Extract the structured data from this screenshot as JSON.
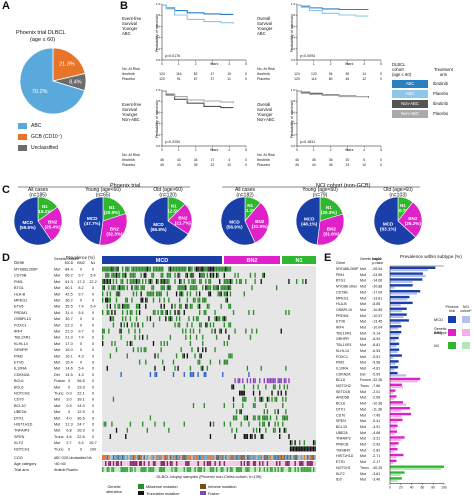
{
  "panels": {
    "A": {
      "letter": "A",
      "title_line1": "Phoenix trial DLBCL",
      "title_line2": "(age ≤ 60)",
      "slices": [
        {
          "label": "ABC",
          "value": 70.2,
          "text": "70.2%",
          "color": "#5aa9dc"
        },
        {
          "label": "GCB (CD10⁻)",
          "value": 21.3,
          "text": "21.3%",
          "color": "#e8742a"
        },
        {
          "label": "Unclassified",
          "value": 8.4,
          "text": "8.4%",
          "color": "#6b6b6b"
        }
      ],
      "legend": [
        "ABC",
        "GCB (CD10⁻)",
        "Unclassified"
      ]
    },
    "B": {
      "letter": "B",
      "plots": [
        {
          "ylabel": "Probability of survival",
          "side": "Event-free Survival Younger ABC",
          "p": "p=0.0176",
          "at_risk": "No. At Risk",
          "ibr_label": "Ibrutinib",
          "pla_label": "Placebo",
          "ibr": [
            "124",
            "116",
            "82",
            "47",
            "10",
            "0"
          ],
          "pla": [
            "120",
            "91",
            "67",
            "37",
            "11",
            "0"
          ],
          "ibr_color": "#2a7fc0",
          "pla_color": "#8ec6ea"
        },
        {
          "ylabel": "Probability of survival",
          "side": "Overall Survival Younger ABC",
          "p": "p=0.0094",
          "at_risk": "No. At Risk",
          "ibr_label": "Ibrutinib",
          "pla_label": "Placebo",
          "ibr": [
            "124",
            "123",
            "94",
            "59",
            "14",
            "0"
          ],
          "pla": [
            "120",
            "114",
            "80",
            "46",
            "12",
            "0"
          ],
          "ibr_color": "#2a7fc0",
          "pla_color": "#8ec6ea"
        },
        {
          "ylabel": "Probability of survival",
          "side": "Event-free Survival Younger Non-ABC",
          "p": "p=0.2250",
          "at_risk": "No. At Risk",
          "ibr_label": "Ibrutinib",
          "pla_label": "Placebo",
          "ibr": [
            "46",
            "43",
            "34",
            "17",
            "4",
            "0"
          ],
          "pla": [
            "45",
            "43",
            "35",
            "22",
            "10",
            "0"
          ],
          "ibr_color": "#555555",
          "pla_color": "#aaaaaa"
        },
        {
          "ylabel": "Probability of survival",
          "side": "Overall Survival Younger Non-ABC",
          "p": "p=0.1831",
          "at_risk": "No. At Risk",
          "ibr_label": "Ibrutinib",
          "pla_label": "Placebo",
          "ibr": [
            "46",
            "45",
            "36",
            "20",
            "5",
            "0"
          ],
          "pla": [
            "45",
            "44",
            "36",
            "23",
            "10",
            "0"
          ],
          "ibr_color": "#555555",
          "pla_color": "#aaaaaa"
        }
      ],
      "xlabel": "Years",
      "xticks": [
        "0",
        "1",
        "2",
        "3",
        "4",
        "5"
      ],
      "legend_title1": "DLBCL",
      "legend_title2": "cohort",
      "legend_title3": "(age ≤ 60)",
      "legend_title4": "Treatment",
      "legend_title5": "arm",
      "legend_rows": [
        {
          "cohort": "ABC",
          "arm": "Ibrutinib",
          "color": "#2a7fc0"
        },
        {
          "cohort": "ABC",
          "arm": "Placebo",
          "color": "#8ec6ea"
        },
        {
          "cohort": "Non-ABC",
          "arm": "Ibrutinib",
          "color": "#555555"
        },
        {
          "cohort": "Non-ABC",
          "arm": "Placebo",
          "color": "#aaaaaa"
        }
      ]
    },
    "C": {
      "letter": "C",
      "phoenix_title": "Phoenix trial",
      "nci_title": "NCI cohort (non-GCB)",
      "pies": [
        {
          "head": "All cases",
          "n": "(n=185)",
          "mcd": "MCD (59.5%)",
          "bn2": "BN2 (25.4%)",
          "n1": "N1 (15.1%)",
          "v": [
            59.5,
            25.4,
            15.1
          ]
        },
        {
          "head": "Young (age<60)",
          "n": "(n=65)",
          "mcd": "MCD (47.7%)",
          "bn2": "BN2 (32.3%)",
          "n1": "N1 (20.0%)",
          "v": [
            47.7,
            32.3,
            20.0
          ]
        },
        {
          "head": "Old (age>60)",
          "n": "(n=120)",
          "mcd": "MCD (65.8%)",
          "bn2": "BN2 (21.7%)",
          "n1": "N1 (12.5%)",
          "v": [
            65.8,
            21.7,
            12.5
          ]
        },
        {
          "head": "All cases",
          "n": "(n=182)",
          "mcd": "MCD (56.9%)",
          "bn2": "BN2 (31.9%)",
          "n1": "N1 (11.2%)",
          "v": [
            56.9,
            31.9,
            11.2
          ]
        },
        {
          "head": "Young (age<60)",
          "n": "(n=79)",
          "mcd": "MCD (48.1%)",
          "bn2": "BN2 (31.6%)",
          "n1": "N1 (20.3%)",
          "v": [
            48.1,
            31.6,
            20.3
          ]
        },
        {
          "head": "Old (age>60)",
          "n": "(n=103)",
          "mcd": "MCD (63.1%)",
          "bn2": "BN2 (26.2%)",
          "n1": "N1 (10.7%)",
          "v": [
            63.1,
            26.2,
            10.7
          ]
        }
      ]
    },
    "D": {
      "letter": "D",
      "col_gene": "Gene",
      "col_alt": "Genetic feature",
      "col_prev": "Prevalence (%)",
      "col_subtypes": [
        "MCD",
        "BN2",
        "N1"
      ],
      "groups": [
        {
          "name": "MCD",
          "color": "#1a3fa8"
        },
        {
          "name": "BN2",
          "color": "#e020c8"
        },
        {
          "name": "N1",
          "color": "#2fb82f"
        }
      ],
      "genes": [
        {
          "g": "MYD88L265P",
          "a": "Mut",
          "p": [
            "84.4",
            "0",
            "0"
          ]
        },
        {
          "g": "CD79B",
          "a": "Mut",
          "p": [
            "56.2",
            "9.7",
            "5.4"
          ]
        },
        {
          "g": "PIM1",
          "a": "Mut",
          "p": [
            "61.3",
            "17.2",
            "22.2"
          ]
        },
        {
          "g": "BTG1",
          "a": "Mut",
          "p": [
            "60.1",
            "8.2",
            "0"
          ]
        },
        {
          "g": "HLA-B",
          "a": "Mut",
          "p": [
            "42.5",
            "9.7",
            "0"
          ]
        },
        {
          "g": "MPEG1",
          "a": "Mut",
          "p": [
            "36.2",
            "0",
            "0"
          ]
        },
        {
          "g": "ETV6",
          "a": "Mut",
          "p": [
            "35.5",
            "7.4",
            "5.4"
          ]
        },
        {
          "g": "PRDM1",
          "a": "Mut",
          "p": [
            "31.4",
            "5.4",
            "0"
          ]
        },
        {
          "g": "OSBPL10",
          "a": "Mut",
          "p": [
            "30.7",
            "0",
            "0"
          ]
        },
        {
          "g": "FOXC1",
          "a": "Mut",
          "p": [
            "22.3",
            "0",
            "0"
          ]
        },
        {
          "g": "IRF4",
          "a": "Mut",
          "p": [
            "21.0",
            "9.7",
            "0"
          ]
        },
        {
          "g": "TBL1XR1",
          "a": "Mut",
          "p": [
            "21.0",
            "7.4",
            "0"
          ]
        },
        {
          "g": "KLHL14",
          "a": "Mut",
          "p": [
            "17.0",
            "0",
            "0"
          ]
        },
        {
          "g": "GRHPR",
          "a": "Mut",
          "p": [
            "16.0",
            "0",
            "0"
          ]
        },
        {
          "g": "PIM2",
          "a": "Mut",
          "p": [
            "16.1",
            "4.3",
            "0"
          ]
        },
        {
          "g": "ETV6",
          "a": "Mut",
          "p": [
            "15.4",
            "0",
            "0"
          ]
        },
        {
          "g": "IL10RA",
          "a": "Mut",
          "p": [
            "14.6",
            "5.4",
            "0"
          ]
        },
        {
          "g": "CDKN2A",
          "a": "Del",
          "p": [
            "14.5",
            "4.3",
            "0"
          ]
        },
        {
          "g": "BCL6",
          "a": "Fusion",
          "p": [
            "0",
            "56.5",
            "0"
          ]
        },
        {
          "g": "BCL6",
          "a": "Mut",
          "p": [
            "0",
            "23.9",
            "0"
          ]
        },
        {
          "g": "NOTCH2",
          "a": "Trunc",
          "p": [
            "0.9",
            "22.1",
            "0"
          ]
        },
        {
          "g": "CD70",
          "a": "Mut",
          "p": [
            "3.0",
            "39.1",
            "0"
          ]
        },
        {
          "g": "BCL10",
          "a": "Mut",
          "p": [
            "0.9",
            "14.0",
            "0"
          ]
        },
        {
          "g": "UBE2A",
          "a": "Mut",
          "p": [
            "0",
            "12.9",
            "0"
          ]
        },
        {
          "g": "DTX1",
          "a": "Mut",
          "p": [
            "4.0",
            "36.6",
            "0"
          ]
        },
        {
          "g": "HIST1H1D",
          "a": "Mut",
          "p": [
            "12.3",
            "24.7",
            "0"
          ]
        },
        {
          "g": "TNFAIP3",
          "a": "Mut",
          "p": [
            "6.8",
            "26.9",
            "0"
          ]
        },
        {
          "g": "SPEN",
          "a": "Trunc",
          "p": [
            "4.6",
            "22.6",
            "0"
          ]
        },
        {
          "g": "KLF2",
          "a": "Mut",
          "p": [
            "2.7",
            "5.4",
            "26.7"
          ]
        },
        {
          "g": "NOTCH1",
          "a": "Trunc",
          "p": [
            "0",
            "0",
            "100"
          ]
        }
      ],
      "coo_label": "COO",
      "age_label": "Age category",
      "trial_label": "Trial arm",
      "coo_key": "ABC GCB Unclassified NA",
      "age_key": "<60 >60",
      "trial_key": "Ibrutinib Placebo",
      "bottom_label": "DLBCL biopsy samples (Phoenix non-China cohort; n=139)",
      "alt_title": "Genetic alteration",
      "alt_items": [
        {
          "label": "Missense mutation",
          "color": "#2e8b2e"
        },
        {
          "label": "Inframe mutation",
          "color": "#7a4a1a"
        },
        {
          "label": "Truncating mutation",
          "color": "#111111"
        },
        {
          "label": "Fusion",
          "color": "#8a3fc0"
        }
      ]
    },
    "E": {
      "letter": "E",
      "col_gene": "Gene",
      "col_alt": "Genetic feature",
      "col_log": "Log",
      "col_log2": "10",
      "col_p": "p-value",
      "title": "Prevalence within subtype (%)",
      "xticks": [
        "0",
        "20",
        "40",
        "60",
        "80",
        "100"
      ],
      "genes": [
        {
          "g": "MYD88L265P",
          "a": "Mut",
          "p": "-26.54",
          "sub": "MCD",
          "ph": 84,
          "nci": 70
        },
        {
          "g": "PIM1",
          "a": "Mut",
          "p": "-24.56",
          "sub": "MCD",
          "ph": 61,
          "nci": 66
        },
        {
          "g": "BTG1",
          "a": "Mut",
          "p": "-14.06",
          "sub": "MCD",
          "ph": 60,
          "nci": 42
        },
        {
          "g": "MYD88 other",
          "a": "Mut",
          "p": "-20.88",
          "sub": "MCD",
          "ph": 42,
          "nci": 8
        },
        {
          "g": "CD79B",
          "a": "Mut",
          "p": "-17.09",
          "sub": "MCD",
          "ph": 56,
          "nci": 50
        },
        {
          "g": "MPEG1",
          "a": "Mut",
          "p": "-13.81",
          "sub": "MCD",
          "ph": 36,
          "nci": 32
        },
        {
          "g": "HLA-B",
          "a": "Mut",
          "p": "-8.85",
          "sub": "MCD",
          "ph": 42,
          "nci": 20
        },
        {
          "g": "OSBPL10",
          "a": "Mut",
          "p": "-10.85",
          "sub": "MCD",
          "ph": 31,
          "nci": 22
        },
        {
          "g": "PRDM1",
          "a": "Mut",
          "p": "-10.57",
          "sub": "MCD",
          "ph": 31,
          "nci": 25
        },
        {
          "g": "ETV6",
          "a": "Mut",
          "p": "-13.45",
          "sub": "MCD",
          "ph": 35,
          "nci": 20
        },
        {
          "g": "IRF4",
          "a": "Mut",
          "p": "-10.04",
          "sub": "MCD",
          "ph": 21,
          "nci": 15
        },
        {
          "g": "TBL1XR1",
          "a": "Mut",
          "p": "-9.14",
          "sub": "MCD",
          "ph": 21,
          "nci": 18
        },
        {
          "g": "GRHPR",
          "a": "Mut",
          "p": "-8.94",
          "sub": "MCD",
          "ph": 16,
          "nci": 10
        },
        {
          "g": "TBL1XR1",
          "a": "Mut",
          "p": "-6.81",
          "sub": "MCD",
          "ph": 17,
          "nci": 12
        },
        {
          "g": "KLHL14",
          "a": "Mut",
          "p": "-6.53",
          "sub": "MCD",
          "ph": 17,
          "nci": 14
        },
        {
          "g": "FOXC1",
          "a": "Mut",
          "p": "-5.51",
          "sub": "MCD",
          "ph": 22,
          "nci": 6
        },
        {
          "g": "PIM2",
          "a": "Mut",
          "p": "-5.58",
          "sub": "MCD",
          "ph": 16,
          "nci": 10
        },
        {
          "g": "IL10RA",
          "a": "Mut",
          "p": "-4.81",
          "sub": "MCD",
          "ph": 15,
          "nci": 8
        },
        {
          "g": "CDKN2A",
          "a": "Del",
          "p": "-5.05",
          "sub": "MCD",
          "ph": 14,
          "nci": 30
        },
        {
          "g": "BCL6",
          "a": "Fusion",
          "p": "-32.26",
          "sub": "BN2",
          "ph": 56,
          "nci": 52
        },
        {
          "g": "NOTCH2",
          "a": "Trunc",
          "p": "-7.66",
          "sub": "BN2",
          "ph": 22,
          "nci": 24
        },
        {
          "g": "SETD1B",
          "a": "Mut",
          "p": "-2.01",
          "sub": "BN2",
          "ph": 10,
          "nci": 6
        },
        {
          "g": "ARID5B",
          "a": "Mut",
          "p": "-2.08",
          "sub": "BN2",
          "ph": 12,
          "nci": 8
        },
        {
          "g": "BCL6",
          "a": "Mut",
          "p": "-10.36",
          "sub": "BN2",
          "ph": 24,
          "nci": 30
        },
        {
          "g": "DTX1",
          "a": "Mut",
          "p": "-11.36",
          "sub": "BN2",
          "ph": 37,
          "nci": 20
        },
        {
          "g": "CD70",
          "a": "Mut",
          "p": "-7.45",
          "sub": "BN2",
          "ph": 39,
          "nci": 22
        },
        {
          "g": "SPEN",
          "a": "Mut",
          "p": "-5.41",
          "sub": "BN2",
          "ph": 23,
          "nci": 14
        },
        {
          "g": "BCL10",
          "a": "Mut",
          "p": "-4.91",
          "sub": "BN2",
          "ph": 14,
          "nci": 10
        },
        {
          "g": "UBE2A",
          "a": "Mut",
          "p": "-4.68",
          "sub": "BN2",
          "ph": 13,
          "nci": 8
        },
        {
          "g": "TNFAIP3",
          "a": "Mut",
          "p": "-3.31",
          "sub": "BN2",
          "ph": 27,
          "nci": 20
        },
        {
          "g": "PRKCB",
          "a": "Mut",
          "p": "-2.93",
          "sub": "BN2",
          "ph": 16,
          "nci": 10
        },
        {
          "g": "TMSB4X",
          "a": "Mut",
          "p": "-2.82",
          "sub": "BN2",
          "ph": 14,
          "nci": 8
        },
        {
          "g": "HIST1H1D",
          "a": "Mut",
          "p": "-2.71",
          "sub": "BN2",
          "ph": 25,
          "nci": 12
        },
        {
          "g": "ETS1",
          "a": "Mut",
          "p": "-2.17",
          "sub": "BN2",
          "ph": 12,
          "nci": 6
        },
        {
          "g": "NOTCH1",
          "a": "Trunc",
          "p": "-30.25",
          "sub": "N1",
          "ph": 100,
          "nci": 95
        },
        {
          "g": "KLF2",
          "a": "Mut",
          "p": "-3.61",
          "sub": "N1",
          "ph": 27,
          "nci": 20
        },
        {
          "g": "ID3",
          "a": "Mut",
          "p": "-3.40",
          "sub": "N1",
          "ph": 22,
          "nci": 14
        }
      ],
      "legend_ph": "Phoenix trial",
      "legend_nci": "NCI cohort*",
      "legend_subtype": "Genetic subtype",
      "legend_rows": [
        {
          "name": "MCD",
          "ph": "#1a3fa8",
          "nci": "#b5bfe8"
        },
        {
          "name": "BN2",
          "ph": "#e020c8",
          "nci": "#f3b0ec"
        },
        {
          "name": "N1",
          "ph": "#2fb82f",
          "nci": "#b5e6b5"
        }
      ]
    }
  }
}
